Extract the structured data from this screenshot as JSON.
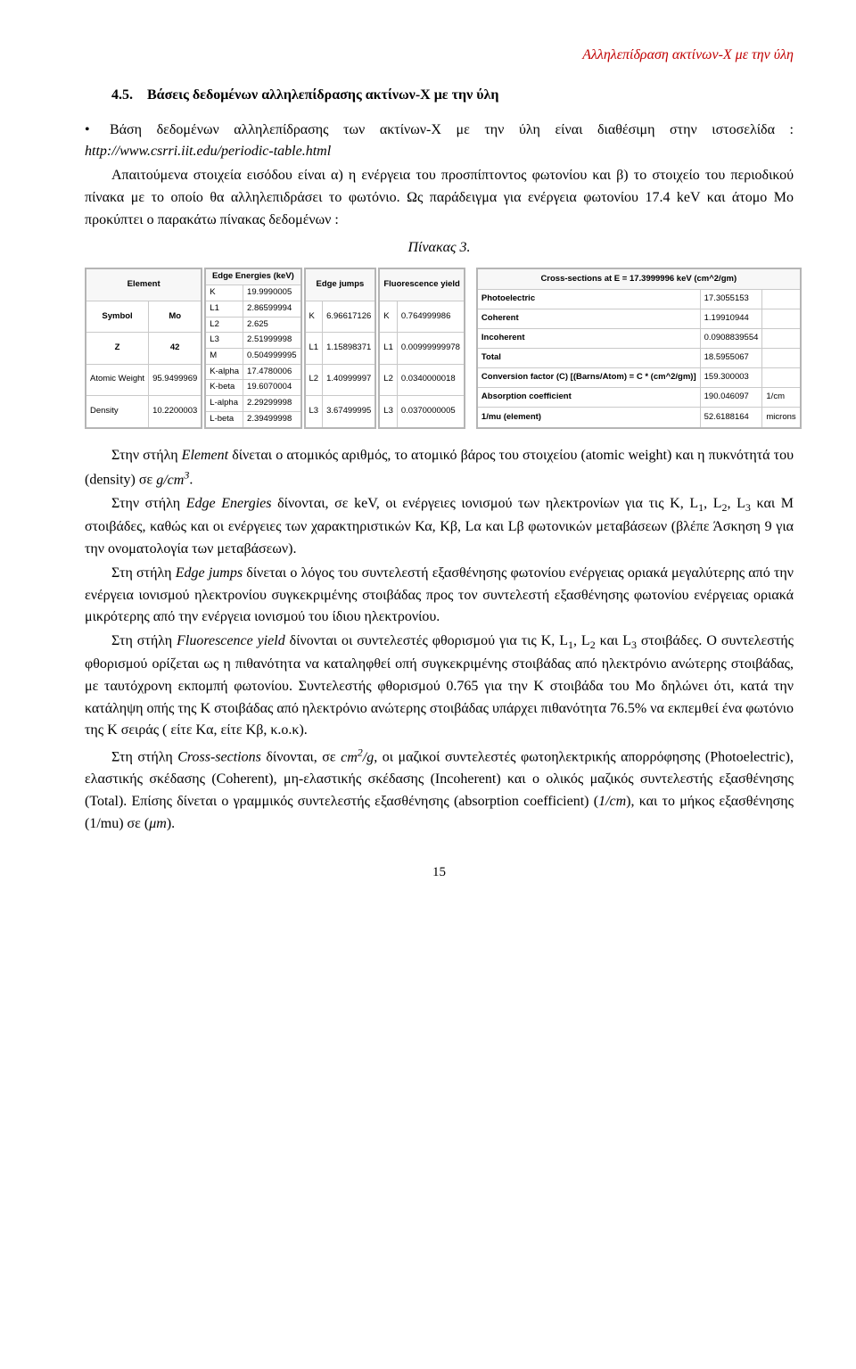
{
  "header": {
    "running_title": "Αλληλεπίδραση ακτίνων-Χ με την ύλη"
  },
  "section": {
    "number": "4.5.",
    "title": "Βάσεις δεδομένων αλληλεπίδρασης ακτίνων-Χ με την ύλη"
  },
  "para1": {
    "pre": "Βάση δεδομένων  αλληλεπίδρασης των ακτίνων-Χ με την ύλη είναι διαθέσιμη στην ιστοσελίδα : ",
    "url": "http://www.csrri.iit.edu/periodic-table.html"
  },
  "para2_a": "Απαιτούμενα στοιχεία εισόδου είναι  α) η ενέργεια του προσπίπτοντος φωτονίου και β) το στοιχείο του περιοδικού πίνακα με το οποίο θα αλληλεπιδράσει το φωτόνιο. Ως παράδειγμα για ενέργεια φωτονίου 17.4 keV και άτομο Mo προκύπτει ο παρακάτω πίνακας δεδομένων :",
  "table_caption": "Πίνακας 3.",
  "element_table": {
    "header": "Element",
    "rows": [
      {
        "k": "Symbol",
        "v": "Mo"
      },
      {
        "k": "Z",
        "v": "42"
      },
      {
        "k": "Atomic Weight",
        "v": "95.9499969"
      },
      {
        "k": "Density",
        "v": "10.2200003"
      }
    ]
  },
  "edge_energies": {
    "header": "Edge Energies (keV)",
    "rows": [
      {
        "k": "K",
        "v": "19.9990005"
      },
      {
        "k": "L1",
        "v": "2.86599994"
      },
      {
        "k": "L2",
        "v": "2.625"
      },
      {
        "k": "L3",
        "v": "2.51999998"
      },
      {
        "k": "M",
        "v": "0.504999995"
      },
      {
        "k": "K-alpha",
        "v": "17.4780006"
      },
      {
        "k": "K-beta",
        "v": "19.6070004"
      },
      {
        "k": "L-alpha",
        "v": "2.29299998"
      },
      {
        "k": "L-beta",
        "v": "2.39499998"
      }
    ]
  },
  "edge_jumps": {
    "header": "Edge jumps",
    "rows": [
      {
        "k": "K",
        "v": "6.96617126"
      },
      {
        "k": "L1",
        "v": "1.15898371"
      },
      {
        "k": "L2",
        "v": "1.40999997"
      },
      {
        "k": "L3",
        "v": "3.67499995"
      }
    ]
  },
  "fluor_yield": {
    "header": "Fluorescence yield",
    "rows": [
      {
        "k": "K",
        "v": "0.764999986"
      },
      {
        "k": "L1",
        "v": "0.00999999978"
      },
      {
        "k": "L2",
        "v": "0.0340000018"
      },
      {
        "k": "L3",
        "v": "0.0370000005"
      }
    ]
  },
  "cross_sections": {
    "header": "Cross-sections at E = 17.3999996 keV (cm^2/gm)",
    "rows": [
      {
        "k": "Photoelectric",
        "v": "17.3055153",
        "u": ""
      },
      {
        "k": "Coherent",
        "v": "1.19910944",
        "u": ""
      },
      {
        "k": "Incoherent",
        "v": "0.0908839554",
        "u": ""
      },
      {
        "k": "Total",
        "v": "18.5955067",
        "u": ""
      },
      {
        "k": "Conversion factor (C) [(Barns/Atom) = C * (cm^2/gm)]",
        "v": "159.300003",
        "u": ""
      },
      {
        "k": "Absorption coefficient",
        "v": "190.046097",
        "u": "1/cm"
      },
      {
        "k": "1/mu (element)",
        "v": "52.6188164",
        "u": "microns"
      }
    ]
  },
  "body": {
    "p_element_a": "Στην στήλη ",
    "p_element_i": "Element",
    "p_element_b": " δίνεται ο ατομικός αριθμός, το ατομικό βάρος του στοιχείου (atomic weight) και η πυκνότητά του (density) σε ",
    "p_element_unit": "g/cm",
    "p_element_sup": "3",
    "p_element_end": ".",
    "p_edgeE_a": "Στην στήλη ",
    "p_edgeE_i": "Edge Energies",
    "p_edgeE_b": " δίνονται, σε keV, οι ενέργειες ιονισμού των ηλεκτρονίων για τις K, L",
    "sub1": "1",
    "p_edgeE_c": ", L",
    "sub2": "2",
    "p_edgeE_d": ", L",
    "sub3": "3",
    "p_edgeE_e": " και M στοιβάδες, καθώς και οι ενέργειες των χαρακτηριστικών Κα, Κβ, Lα και Lβ φωτονικών μεταβάσεων (βλέπε Άσκηση 9 για την ονοματολογία των μεταβάσεων).",
    "p_edgeJ_a": "Στη στήλη ",
    "p_edgeJ_i": "Edge jumps",
    "p_edgeJ_b": " δίνεται ο λόγος του συντελεστή εξασθένησης φωτονίου ενέργειας οριακά μεγαλύτερης από την ενέργεια ιονισμού ηλεκτρονίου συγκεκριμένης στοιβάδας προς τον συντελεστή εξασθένησης φωτονίου ενέργειας οριακά μικρότερης από την ενέργεια ιονισμού του ίδιου ηλεκτρονίου.",
    "p_fluor_a": "Στη στήλη ",
    "p_fluor_i": "Fluorescence yield",
    "p_fluor_b": " δίνονται οι συντελεστές φθορισμού για τις K, L",
    "p_fluor_c": " και L",
    "p_fluor_d": " στοιβάδες. Ο συντελεστής φθορισμού ορίζεται ως η πιθανότητα να καταληφθεί οπή συγκεκριμένης στοιβάδας από ηλεκτρόνιο ανώτερης στοιβάδας, με ταυτόχρονη εκπομπή φωτονίου. Συντελεστής φθορισμού 0.765 για την K στοιβάδα του Mo δηλώνει ότι, κατά την κατάληψη οπής της K στοιβάδας από ηλεκτρόνιο ανώτερης στοιβάδας υπάρχει πιθανότητα 76.5%  να εκπεμθεί ένα φωτόνιο της K σειράς ( είτε Kα, είτε Kβ, κ.ο.κ).",
    "p_cross_a": "Στη  στήλη ",
    "p_cross_i": "Cross-sections",
    "p_cross_b": " δίνονται, σε ",
    "p_cross_unit": "cm",
    "p_cross_sup2": "2",
    "p_cross_slashg": "/g",
    "p_cross_c": ", οι μαζικοί συντελεστές φωτοηλεκτρικής απορρόφησης (Photoelectric), ελαστικής σκέδασης (Coherent), μη-ελαστικής σκέδασης (Incoherent) και ο ολικός μαζικός συντελεστής εξασθένησης (Total). Επίσης  δίνεται ο γραμμικός συντελεστής εξασθένησης (absorption coefficient) (",
    "p_cross_1cm": "1/cm",
    "p_cross_d": "), και το μήκος εξασθένησης (1/mu) σε (",
    "p_cross_mu": "μm",
    "p_cross_e": ")."
  },
  "page_number": "15"
}
